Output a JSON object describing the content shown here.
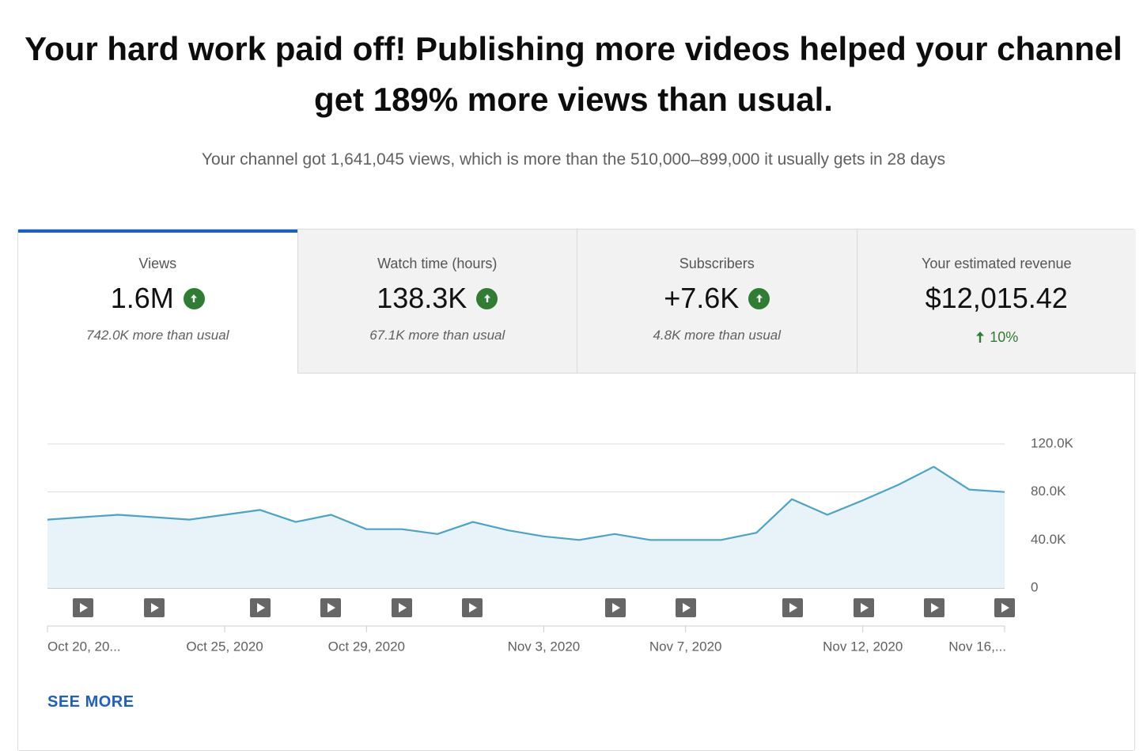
{
  "header": {
    "title": "Your hard work paid off! Publishing more videos helped your channel get 189% more views than usual.",
    "subtitle": "Your channel got 1,641,045 views, which is more than the 510,000–899,000 it usually gets in 28 days"
  },
  "tabs": [
    {
      "label": "Views",
      "value": "1.6M",
      "note": "742.0K more than usual"
    },
    {
      "label": "Watch time (hours)",
      "value": "138.3K",
      "note": "67.1K more than usual"
    },
    {
      "label": "Subscribers",
      "value": "+7.6K",
      "note": "4.8K more than usual"
    },
    {
      "label": "Your estimated revenue",
      "value": "$12,015.42",
      "change": "10%"
    }
  ],
  "chart_data": {
    "type": "area",
    "categories": [
      "Oct 20, 20...",
      null,
      null,
      null,
      null,
      "Oct 25, 2020",
      null,
      null,
      null,
      "Oct 29, 2020",
      null,
      null,
      null,
      null,
      "Nov 3, 2020",
      null,
      null,
      null,
      "Nov 7, 2020",
      null,
      null,
      null,
      null,
      "Nov 12, 2020",
      null,
      null,
      null,
      "Nov 16,..."
    ],
    "values": [
      57000,
      59000,
      61000,
      59000,
      57000,
      61000,
      65000,
      55000,
      61000,
      49000,
      49000,
      45000,
      55000,
      48000,
      43000,
      40000,
      45000,
      40000,
      40000,
      40000,
      46000,
      74000,
      61000,
      73000,
      86000,
      101000,
      82000,
      80000
    ],
    "color": "#4ba3c7",
    "ylim": [
      0,
      120000
    ],
    "yticks": [
      0,
      {
        "value": 40000,
        "label": "40.0K"
      },
      {
        "value": 80000,
        "label": "80.0K"
      },
      {
        "value": 120000,
        "label": "120.0K"
      }
    ],
    "grid": true
  },
  "see_more": "SEE MORE"
}
